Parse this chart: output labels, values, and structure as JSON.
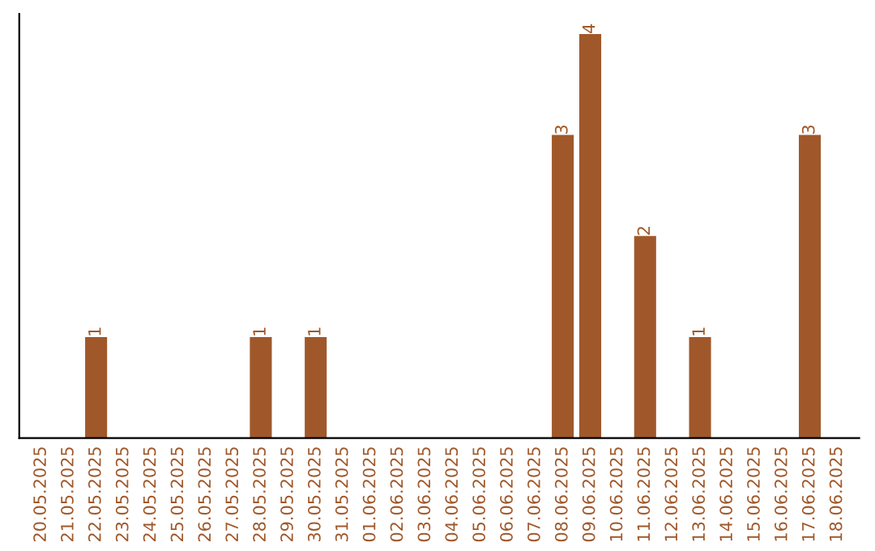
{
  "chart_data": {
    "type": "bar",
    "categories": [
      "20.05.2025",
      "21.05.2025",
      "22.05.2025",
      "23.05.2025",
      "24.05.2025",
      "25.05.2025",
      "26.05.2025",
      "27.05.2025",
      "28.05.2025",
      "29.05.2025",
      "30.05.2025",
      "31.05.2025",
      "01.06.2025",
      "02.06.2025",
      "03.06.2025",
      "04.06.2025",
      "05.06.2025",
      "06.06.2025",
      "07.06.2025",
      "08.06.2025",
      "09.06.2025",
      "10.06.2025",
      "11.06.2025",
      "12.06.2025",
      "13.06.2025",
      "14.06.2025",
      "15.06.2025",
      "16.06.2025",
      "17.06.2025",
      "18.06.2025"
    ],
    "values": [
      0,
      0,
      1,
      0,
      0,
      0,
      0,
      0,
      1,
      0,
      1,
      0,
      0,
      0,
      0,
      0,
      0,
      0,
      0,
      3,
      4,
      0,
      2,
      0,
      1,
      0,
      0,
      0,
      3,
      0
    ],
    "value_labels": [
      null,
      null,
      "1",
      null,
      null,
      null,
      null,
      null,
      "1",
      null,
      "1",
      null,
      null,
      null,
      null,
      null,
      null,
      null,
      null,
      "3",
      "4",
      null,
      "2",
      null,
      "1",
      null,
      null,
      null,
      "3",
      null
    ],
    "color": "#a0582a",
    "tick_labels": "x",
    "grid": false,
    "legend": false
  }
}
